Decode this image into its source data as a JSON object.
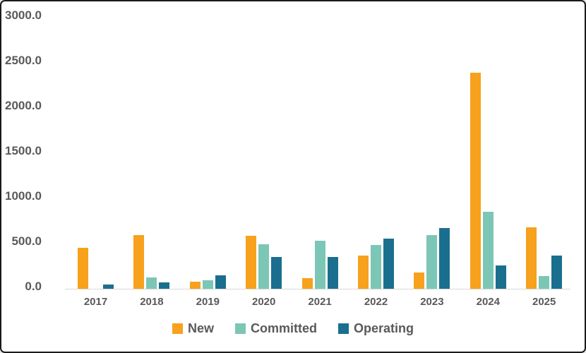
{
  "chart_data": {
    "type": "bar",
    "title": "",
    "xlabel": "",
    "ylabel": "",
    "categories": [
      "2017",
      "2018",
      "2019",
      "2020",
      "2021",
      "2022",
      "2023",
      "2024",
      "2025"
    ],
    "series": [
      {
        "name": "New",
        "color": "#F7A11D",
        "values": [
          450,
          595,
          80,
          585,
          120,
          370,
          180,
          2390,
          680
        ]
      },
      {
        "name": "Committed",
        "color": "#7CC6B6",
        "values": [
          0,
          125,
          95,
          495,
          535,
          485,
          590,
          850,
          140
        ]
      },
      {
        "name": "Operating",
        "color": "#1B6F8E",
        "values": [
          50,
          70,
          145,
          355,
          355,
          555,
          670,
          260,
          365
        ]
      }
    ],
    "ylim": [
      0,
      3000
    ],
    "yticks": [
      "3000.0",
      "2500.0",
      "2000.0",
      "1500.0",
      "1000.0",
      "500.0",
      "0.0"
    ],
    "grid": false,
    "legend_position": "bottom",
    "colors": {
      "label": "#595959",
      "axis_line": "#d9d9d9",
      "background": "#ffffff",
      "border": "#1a1a1a"
    }
  }
}
